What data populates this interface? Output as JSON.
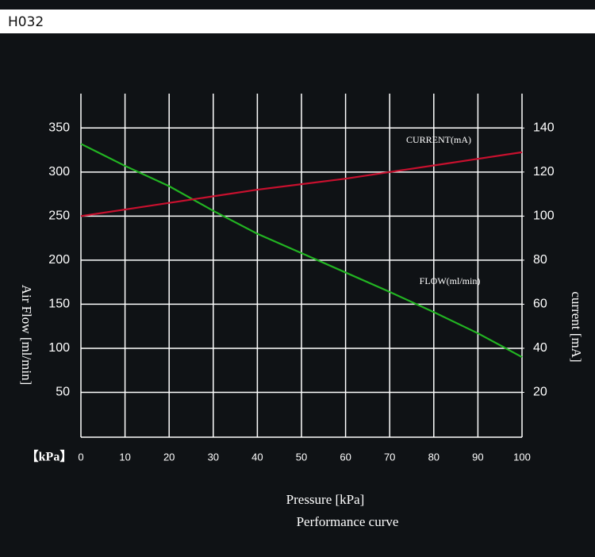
{
  "header": {
    "title": "H032"
  },
  "chart_data": {
    "type": "line",
    "xlabel": "Pressure [kPa]",
    "x_unit_label": "【kPa】",
    "caption": "Performance curve",
    "ylabel": "Air Flow [ml/min]",
    "y2label": "current [mA]",
    "x": [
      0,
      10,
      20,
      30,
      40,
      50,
      60,
      70,
      80,
      90,
      100
    ],
    "xlim": [
      0,
      100
    ],
    "xticks": [
      0,
      10,
      20,
      30,
      40,
      50,
      60,
      70,
      80,
      90,
      100
    ],
    "ylim": [
      0,
      389
    ],
    "yticks": [
      50,
      100,
      150,
      200,
      250,
      300,
      350
    ],
    "y2lim": [
      0,
      155.6
    ],
    "y2ticks": [
      20,
      40,
      60,
      80,
      100,
      120,
      140
    ],
    "grid": true,
    "series": [
      {
        "name": "FLOW(ml/min)",
        "color": "#22b422",
        "values": [
          332,
          307,
          284,
          256,
          230,
          208,
          186,
          164,
          141,
          117,
          90
        ]
      },
      {
        "name": "CURRENT(mA)",
        "color": "#c8102e",
        "axis": "y2",
        "values": [
          100,
          103,
          106,
          109,
          112,
          114.5,
          117,
          120,
          123,
          126,
          129
        ]
      }
    ]
  }
}
